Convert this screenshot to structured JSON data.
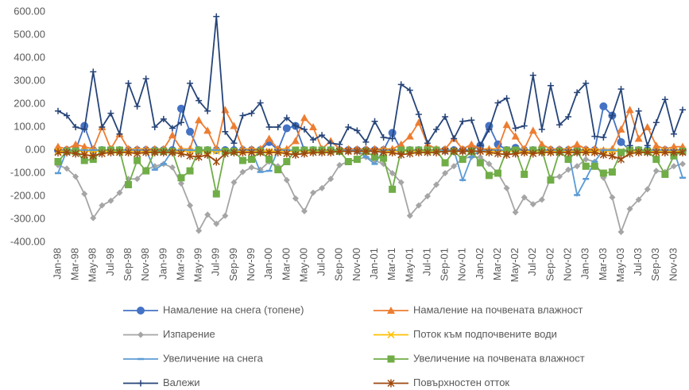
{
  "chart_data": {
    "type": "line",
    "categories": [
      "Jan-98",
      null,
      "Mar-98",
      null,
      "May-98",
      null,
      "Jul-98",
      null,
      "Sep-98",
      null,
      "Nov-98",
      null,
      "Jan-99",
      null,
      "Mar-99",
      null,
      "May-99",
      null,
      "Jul-99",
      null,
      "Sep-99",
      null,
      "Nov-99",
      null,
      "Jan-00",
      null,
      "Mar-00",
      null,
      "May-00",
      null,
      "Jul-00",
      null,
      "Sep-00",
      null,
      "Nov-00",
      null,
      "Jan-01",
      null,
      "Mar-01",
      null,
      "May-01",
      null,
      "Jul-01",
      null,
      "Sep-01",
      null,
      "Nov-01",
      null,
      "Jan-02",
      null,
      "Mar-02",
      null,
      "May-02",
      null,
      "Jul-02",
      null,
      "Sep-02",
      null,
      "Nov-02",
      null,
      "Jan-03",
      null,
      "Mar-03",
      null,
      "May-03",
      null,
      "Jul-03",
      null,
      "Sep-03",
      null,
      "Nov-03",
      null
    ],
    "ylim": [
      -400,
      600
    ],
    "yticks": [
      {
        "value": -400,
        "label": "-400.00"
      },
      {
        "value": -300,
        "label": "-300.00"
      },
      {
        "value": -200,
        "label": "-200.00"
      },
      {
        "value": -100,
        "label": "-100.00"
      },
      {
        "value": 0,
        "label": "0.00"
      },
      {
        "value": 100,
        "label": "100.00"
      },
      {
        "value": 200,
        "label": "200.00"
      },
      {
        "value": 300,
        "label": "300.00"
      },
      {
        "value": 400,
        "label": "400.00"
      },
      {
        "value": 500,
        "label": "500.00"
      },
      {
        "value": 600,
        "label": "600.00"
      }
    ],
    "grid": false,
    "legend": "bottom",
    "series": [
      {
        "name": "Намаление на снега (топене)",
        "color": "#4472c4",
        "marker": "circle",
        "values": [
          0,
          0,
          0,
          105,
          0,
          0,
          0,
          0,
          0,
          0,
          0,
          0,
          0,
          0,
          180,
          80,
          0,
          0,
          0,
          0,
          0,
          0,
          0,
          0,
          35,
          0,
          95,
          105,
          0,
          0,
          0,
          0,
          0,
          0,
          0,
          0,
          0,
          0,
          75,
          0,
          0,
          0,
          0,
          0,
          0,
          0,
          0,
          0,
          20,
          105,
          25,
          0,
          10,
          0,
          0,
          0,
          0,
          0,
          0,
          0,
          0,
          0,
          190,
          150,
          35,
          0,
          0,
          0,
          0,
          0,
          0,
          0
        ]
      },
      {
        "name": "Намаление на почвената влажност",
        "color": "#ed7d31",
        "marker": "triangle",
        "values": [
          15,
          5,
          25,
          15,
          5,
          100,
          5,
          70,
          5,
          5,
          5,
          5,
          5,
          65,
          5,
          5,
          130,
          85,
          5,
          175,
          105,
          5,
          5,
          5,
          50,
          5,
          5,
          40,
          140,
          100,
          5,
          40,
          5,
          5,
          5,
          5,
          5,
          5,
          5,
          25,
          60,
          120,
          25,
          5,
          5,
          50,
          5,
          25,
          5,
          5,
          5,
          110,
          60,
          5,
          85,
          25,
          5,
          5,
          5,
          25,
          5,
          5,
          0,
          5,
          90,
          175,
          50,
          100,
          20,
          5,
          15,
          15
        ]
      },
      {
        "name": "Изпарение",
        "color": "#a5a5a5",
        "marker": "diamond",
        "values": [
          -65,
          -80,
          -115,
          -190,
          -295,
          -240,
          -220,
          -185,
          -125,
          -125,
          -85,
          -70,
          -60,
          -75,
          -145,
          -240,
          -350,
          -280,
          -320,
          -285,
          -140,
          -95,
          -75,
          -85,
          -50,
          -70,
          -130,
          -210,
          -265,
          -185,
          -165,
          -125,
          -65,
          -50,
          -40,
          -30,
          -45,
          -60,
          -100,
          -140,
          -285,
          -240,
          -200,
          -150,
          -100,
          -70,
          -35,
          -30,
          -30,
          -60,
          -100,
          -165,
          -270,
          -205,
          -235,
          -215,
          -120,
          -115,
          -85,
          -70,
          -40,
          -50,
          -120,
          -205,
          -355,
          -255,
          -215,
          -170,
          -90,
          -95,
          -70,
          -60
        ]
      },
      {
        "name": "Поток към подпочвените води",
        "color": "#ffc000",
        "marker": "x",
        "values": [
          -5,
          -5,
          -5,
          -5,
          -5,
          -5,
          -5,
          -5,
          -5,
          -5,
          -5,
          -5,
          -5,
          -5,
          -5,
          -5,
          -5,
          -5,
          -5,
          -5,
          -5,
          -5,
          -5,
          -5,
          -5,
          -5,
          -5,
          -5,
          -5,
          -5,
          -5,
          -5,
          -5,
          -5,
          -5,
          -5,
          -5,
          -5,
          -5,
          -5,
          -5,
          -5,
          -5,
          -5,
          -5,
          -5,
          -5,
          -5,
          -5,
          -5,
          -5,
          -5,
          -5,
          -5,
          -5,
          -5,
          -5,
          -5,
          -5,
          -5,
          -5,
          -5,
          -5,
          -5,
          -5,
          -5,
          -5,
          -5,
          -5,
          -5,
          -5,
          -5
        ]
      },
      {
        "name": "Увеличение на снега",
        "color": "#5b9bd5",
        "marker": "dash",
        "values": [
          -100,
          0,
          0,
          0,
          0,
          0,
          0,
          0,
          0,
          0,
          0,
          -85,
          -60,
          0,
          0,
          0,
          0,
          0,
          0,
          0,
          0,
          0,
          0,
          -95,
          -90,
          0,
          0,
          0,
          0,
          0,
          0,
          0,
          0,
          0,
          0,
          -30,
          -60,
          0,
          0,
          0,
          0,
          0,
          0,
          0,
          0,
          0,
          -130,
          -30,
          0,
          0,
          0,
          0,
          0,
          0,
          0,
          0,
          0,
          0,
          0,
          -195,
          -125,
          -50,
          0,
          0,
          0,
          0,
          0,
          0,
          0,
          0,
          0,
          -120
        ]
      },
      {
        "name": "Увеличение на почвената влажност",
        "color": "#70ad47",
        "marker": "square",
        "values": [
          -50,
          -5,
          -5,
          -45,
          -40,
          0,
          0,
          0,
          -150,
          -45,
          -90,
          -5,
          -5,
          -5,
          -120,
          -90,
          0,
          0,
          -190,
          -5,
          -5,
          -45,
          -40,
          -5,
          -40,
          -85,
          -50,
          0,
          0,
          0,
          0,
          0,
          -5,
          -50,
          -40,
          -5,
          -30,
          -35,
          -170,
          0,
          0,
          0,
          0,
          0,
          -55,
          -5,
          -40,
          -5,
          -55,
          -110,
          -100,
          0,
          0,
          -105,
          0,
          0,
          -130,
          -5,
          -40,
          -5,
          -70,
          -70,
          -100,
          -95,
          -10,
          0,
          0,
          -5,
          -40,
          -105,
          -25,
          -5
        ]
      },
      {
        "name": "Валежи",
        "color": "#264478",
        "marker": "plus",
        "values": [
          170,
          150,
          100,
          90,
          340,
          100,
          160,
          70,
          290,
          190,
          310,
          100,
          135,
          95,
          120,
          290,
          215,
          170,
          580,
          80,
          30,
          150,
          160,
          205,
          100,
          100,
          140,
          105,
          90,
          45,
          65,
          30,
          25,
          100,
          85,
          35,
          125,
          55,
          50,
          285,
          260,
          155,
          30,
          90,
          145,
          50,
          125,
          130,
          20,
          90,
          205,
          225,
          95,
          105,
          325,
          90,
          280,
          110,
          145,
          250,
          290,
          60,
          55,
          150,
          265,
          20,
          170,
          20,
          120,
          220,
          70,
          175
        ]
      },
      {
        "name": "Повърхностен отток",
        "color": "#9e480e",
        "marker": "star",
        "values": [
          -10,
          -10,
          -15,
          -20,
          -25,
          -15,
          -10,
          -10,
          -10,
          -15,
          -10,
          -10,
          -10,
          -10,
          -15,
          -25,
          -30,
          -20,
          -50,
          -15,
          -10,
          -10,
          -10,
          -10,
          -10,
          -10,
          -15,
          -20,
          -15,
          -10,
          -10,
          -10,
          -5,
          -5,
          -5,
          -5,
          -5,
          -10,
          -10,
          -20,
          -15,
          -10,
          -10,
          -10,
          -5,
          -5,
          -5,
          -5,
          -5,
          -10,
          -15,
          -20,
          -15,
          -10,
          -15,
          -10,
          -10,
          -10,
          -10,
          -10,
          -10,
          -10,
          -20,
          -25,
          -40,
          -15,
          -10,
          -10,
          -10,
          -10,
          -10,
          -10
        ]
      }
    ]
  }
}
